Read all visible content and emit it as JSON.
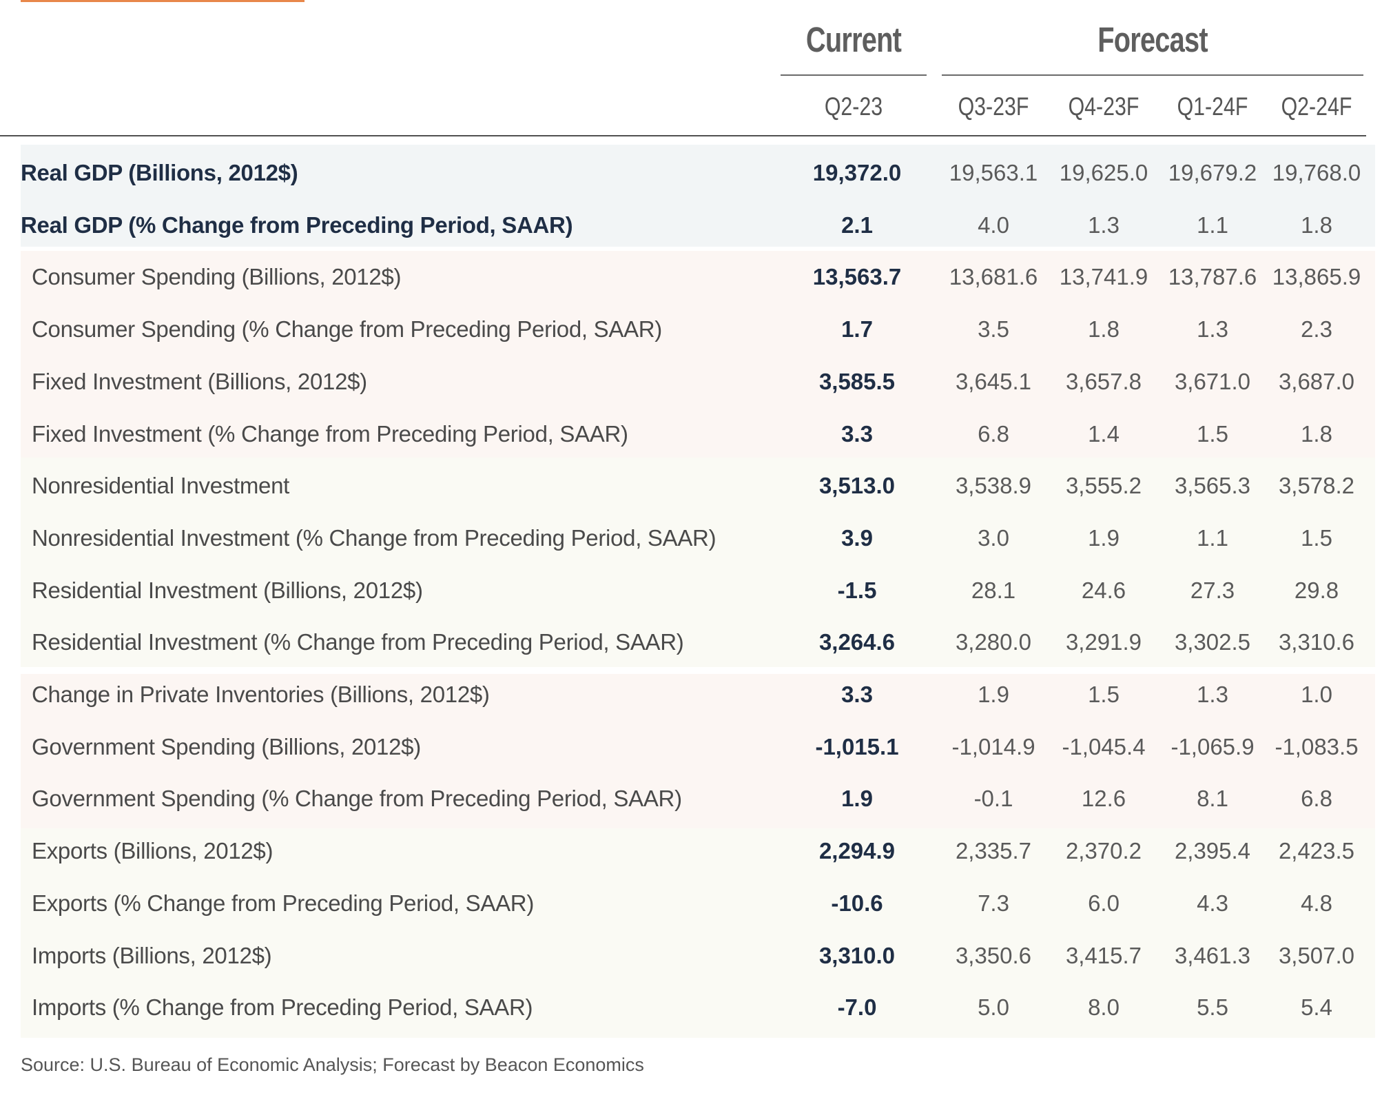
{
  "header": {
    "current_label": "Current",
    "forecast_label": "Forecast",
    "columns": [
      "Q2-23",
      "Q3-23F",
      "Q4-23F",
      "Q1-24F",
      "Q2-24F"
    ]
  },
  "colors": {
    "accent": "#e8874a",
    "main_text": "#1f2e45",
    "band_blue": "#f2f5f6",
    "band_pink": "#fcf6f3",
    "band_cream": "#fafaf4"
  },
  "rows": [
    {
      "label": "Real GDP (Billions, 2012$)",
      "values": [
        "19,372.0",
        "19,563.1",
        "19,625.0",
        "19,679.2",
        "19,768.0"
      ]
    },
    {
      "label": "Real GDP (% Change from Preceding Period, SAAR)",
      "values": [
        "2.1",
        "4.0",
        "1.3",
        "1.1",
        "1.8"
      ]
    },
    {
      "label": "Consumer Spending (Billions, 2012$)",
      "values": [
        "13,563.7",
        "13,681.6",
        "13,741.9",
        "13,787.6",
        "13,865.9"
      ]
    },
    {
      "label": "Consumer Spending (% Change from Preceding Period, SAAR)",
      "values": [
        "1.7",
        "3.5",
        "1.8",
        "1.3",
        "2.3"
      ]
    },
    {
      "label": "Fixed Investment  (Billions, 2012$)",
      "values": [
        "3,585.5",
        "3,645.1",
        "3,657.8",
        "3,671.0",
        "3,687.0"
      ]
    },
    {
      "label": "Fixed Investment  (% Change from Preceding Period, SAAR)",
      "values": [
        "3.3",
        "6.8",
        "1.4",
        "1.5",
        "1.8"
      ]
    },
    {
      "label": "Nonresidential Investment",
      "values": [
        "3,513.0",
        "3,538.9",
        "3,555.2",
        "3,565.3",
        "3,578.2"
      ]
    },
    {
      "label": "Nonresidential Investment (% Change from Preceding Period, SAAR)",
      "values": [
        "3.9",
        "3.0",
        "1.9",
        "1.1",
        "1.5"
      ]
    },
    {
      "label": "Residential Investment (Billions, 2012$)",
      "values": [
        "-1.5",
        "28.1",
        "24.6",
        "27.3",
        "29.8"
      ]
    },
    {
      "label": "Residential Investment (% Change from Preceding Period, SAAR)",
      "values": [
        "3,264.6",
        "3,280.0",
        "3,291.9",
        "3,302.5",
        "3,310.6"
      ]
    },
    {
      "label": "Change in Private Inventories (Billions, 2012$)",
      "values": [
        "3.3",
        "1.9",
        "1.5",
        "1.3",
        "1.0"
      ]
    },
    {
      "label": "Government Spending (Billions, 2012$)",
      "values": [
        "-1,015.1",
        "-1,014.9",
        "-1,045.4",
        "-1,065.9",
        "-1,083.5"
      ]
    },
    {
      "label": "Government Spending (% Change from Preceding Period, SAAR)",
      "values": [
        "1.9",
        "-0.1",
        "12.6",
        "8.1",
        "6.8"
      ]
    },
    {
      "label": "Exports (Billions, 2012$)",
      "values": [
        "2,294.9",
        "2,335.7",
        "2,370.2",
        "2,395.4",
        "2,423.5"
      ]
    },
    {
      "label": "Exports (% Change from Preceding Period, SAAR)",
      "values": [
        "-10.6",
        "7.3",
        "6.0",
        "4.3",
        "4.8"
      ]
    },
    {
      "label": "Imports (Billions, 2012$)",
      "values": [
        "3,310.0",
        "3,350.6",
        "3,415.7",
        "3,461.3",
        "3,507.0"
      ]
    },
    {
      "label": "Imports (% Change from Preceding Period, SAAR)",
      "values": [
        "-7.0",
        "5.0",
        "8.0",
        "5.5",
        "5.4"
      ]
    }
  ],
  "source": "Source: U.S. Bureau of Economic Analysis; Forecast by Beacon Economics"
}
